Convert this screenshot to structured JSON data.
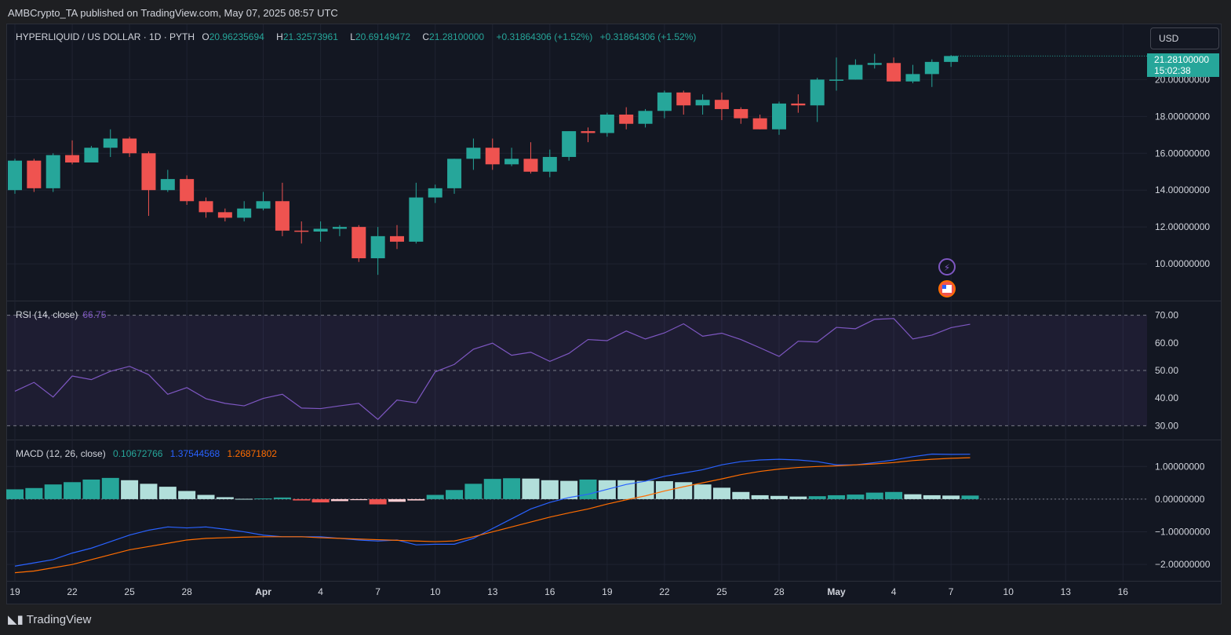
{
  "header": {
    "publisher_line": "AMBCrypto_TA published on TradingView.com, May 07, 2025 08:57 UTC"
  },
  "main_legend": {
    "symbol": "HYPERLIQUID / US DOLLAR · 1D · PYTH",
    "o_label": "O",
    "o_value": "20.96235694",
    "h_label": "H",
    "h_value": "21.32573961",
    "l_label": "L",
    "l_value": "20.69149472",
    "c_label": "C",
    "c_value": "21.28100000",
    "change": "+0.31864306 (+1.52%)",
    "change2": "+0.31864306 (+1.52%)"
  },
  "currency_button": "USD",
  "last_price_label": {
    "price": "21.28100000",
    "countdown": "15:02:38"
  },
  "rsi_legend": {
    "name": "RSI (14, close)",
    "value": "66.75"
  },
  "macd_legend": {
    "name": "MACD (12, 26, close)",
    "hist": "0.10672766",
    "macd": "1.37544568",
    "signal": "1.26871802"
  },
  "footer": {
    "brand": "TradingView"
  },
  "chart_data": [
    {
      "type": "candlestick",
      "ylim": [
        8.0,
        23.0
      ],
      "y_ticks": [
        "10.00000000",
        "12.00000000",
        "14.00000000",
        "16.00000000",
        "18.00000000",
        "20.00000000"
      ],
      "x_ticks": [
        "19",
        "22",
        "25",
        "28",
        "Apr",
        "4",
        "7",
        "10",
        "13",
        "16",
        "19",
        "22",
        "25",
        "28",
        "May",
        "4",
        "7",
        "10",
        "13",
        "16"
      ],
      "x_tick_day_index": [
        0,
        3,
        6,
        9,
        13,
        16,
        19,
        22,
        25,
        28,
        31,
        34,
        37,
        40,
        43,
        46,
        49,
        52,
        55,
        58
      ],
      "candles": [
        {
          "o": 14.0,
          "h": 15.7,
          "l": 13.8,
          "c": 15.6
        },
        {
          "o": 15.6,
          "h": 15.7,
          "l": 13.9,
          "c": 14.1
        },
        {
          "o": 14.1,
          "h": 16.0,
          "l": 13.9,
          "c": 15.9
        },
        {
          "o": 15.9,
          "h": 16.7,
          "l": 15.4,
          "c": 15.5
        },
        {
          "o": 15.5,
          "h": 16.4,
          "l": 15.5,
          "c": 16.3
        },
        {
          "o": 16.3,
          "h": 17.3,
          "l": 15.8,
          "c": 16.8
        },
        {
          "o": 16.8,
          "h": 16.9,
          "l": 15.8,
          "c": 16.0
        },
        {
          "o": 16.0,
          "h": 16.1,
          "l": 12.6,
          "c": 14.0
        },
        {
          "o": 14.0,
          "h": 15.1,
          "l": 13.9,
          "c": 14.6
        },
        {
          "o": 14.6,
          "h": 14.8,
          "l": 13.2,
          "c": 13.4
        },
        {
          "o": 13.4,
          "h": 13.6,
          "l": 12.5,
          "c": 12.8
        },
        {
          "o": 12.8,
          "h": 13.0,
          "l": 12.3,
          "c": 12.5
        },
        {
          "o": 12.5,
          "h": 13.4,
          "l": 12.3,
          "c": 13.0
        },
        {
          "o": 13.0,
          "h": 13.9,
          "l": 12.9,
          "c": 13.4
        },
        {
          "o": 13.4,
          "h": 14.4,
          "l": 11.5,
          "c": 11.8
        },
        {
          "o": 11.8,
          "h": 12.3,
          "l": 11.1,
          "c": 11.75
        },
        {
          "o": 11.75,
          "h": 12.3,
          "l": 11.2,
          "c": 11.9
        },
        {
          "o": 11.9,
          "h": 12.1,
          "l": 11.5,
          "c": 12.0
        },
        {
          "o": 12.0,
          "h": 12.1,
          "l": 10.1,
          "c": 10.3
        },
        {
          "o": 10.3,
          "h": 12.0,
          "l": 9.4,
          "c": 11.5
        },
        {
          "o": 11.5,
          "h": 12.1,
          "l": 10.8,
          "c": 11.2
        },
        {
          "o": 11.2,
          "h": 14.4,
          "l": 11.1,
          "c": 13.6
        },
        {
          "o": 13.6,
          "h": 14.3,
          "l": 13.3,
          "c": 14.1
        },
        {
          "o": 14.1,
          "h": 15.7,
          "l": 13.8,
          "c": 15.7
        },
        {
          "o": 15.7,
          "h": 16.8,
          "l": 15.1,
          "c": 16.3
        },
        {
          "o": 16.3,
          "h": 16.8,
          "l": 15.1,
          "c": 15.4
        },
        {
          "o": 15.4,
          "h": 16.3,
          "l": 15.3,
          "c": 15.7
        },
        {
          "o": 15.7,
          "h": 16.6,
          "l": 14.9,
          "c": 15.0
        },
        {
          "o": 15.0,
          "h": 16.2,
          "l": 14.7,
          "c": 15.8
        },
        {
          "o": 15.8,
          "h": 17.2,
          "l": 15.6,
          "c": 17.2
        },
        {
          "o": 17.2,
          "h": 17.4,
          "l": 16.6,
          "c": 17.1
        },
        {
          "o": 17.1,
          "h": 18.2,
          "l": 16.9,
          "c": 18.1
        },
        {
          "o": 18.1,
          "h": 18.5,
          "l": 17.3,
          "c": 17.6
        },
        {
          "o": 17.6,
          "h": 18.4,
          "l": 17.4,
          "c": 18.3
        },
        {
          "o": 18.3,
          "h": 19.4,
          "l": 17.9,
          "c": 19.3
        },
        {
          "o": 19.3,
          "h": 19.4,
          "l": 18.1,
          "c": 18.6
        },
        {
          "o": 18.6,
          "h": 19.2,
          "l": 18.1,
          "c": 18.9
        },
        {
          "o": 18.9,
          "h": 19.3,
          "l": 17.8,
          "c": 18.4
        },
        {
          "o": 18.4,
          "h": 18.5,
          "l": 17.6,
          "c": 17.9
        },
        {
          "o": 17.9,
          "h": 18.1,
          "l": 17.3,
          "c": 17.3
        },
        {
          "o": 17.3,
          "h": 18.8,
          "l": 17.0,
          "c": 18.7
        },
        {
          "o": 18.7,
          "h": 19.2,
          "l": 18.2,
          "c": 18.6
        },
        {
          "o": 18.6,
          "h": 20.1,
          "l": 17.7,
          "c": 20.0
        },
        {
          "o": 20.0,
          "h": 21.2,
          "l": 19.4,
          "c": 20.0
        },
        {
          "o": 20.0,
          "h": 21.1,
          "l": 20.0,
          "c": 20.8
        },
        {
          "o": 20.8,
          "h": 21.4,
          "l": 20.6,
          "c": 20.9
        },
        {
          "o": 20.9,
          "h": 21.2,
          "l": 19.9,
          "c": 19.9
        },
        {
          "o": 19.9,
          "h": 20.8,
          "l": 19.8,
          "c": 20.3
        },
        {
          "o": 20.3,
          "h": 21.1,
          "l": 19.6,
          "c": 20.96
        },
        {
          "o": 20.96,
          "h": 21.33,
          "l": 20.69,
          "c": 21.28
        }
      ]
    },
    {
      "type": "line",
      "name": "RSI (14, close)",
      "ylim": [
        25,
        75
      ],
      "y_ticks": [
        30,
        40,
        50,
        60,
        70
      ],
      "bands": {
        "upper": 70,
        "middle": 50,
        "lower": 30
      },
      "values": [
        42.5,
        45.7,
        40.4,
        48.0,
        46.7,
        49.7,
        51.5,
        48.5,
        41.4,
        43.8,
        39.8,
        38.1,
        37.2,
        39.9,
        41.4,
        36.4,
        36.2,
        37.2,
        38.1,
        32.3,
        39.3,
        38.3,
        49.5,
        52.2,
        57.7,
        59.9,
        55.5,
        56.6,
        53.3,
        56.2,
        61.2,
        60.8,
        64.3,
        61.4,
        63.6,
        66.9,
        62.4,
        63.5,
        61.2,
        58.2,
        55.1,
        60.6,
        60.3,
        65.6,
        65.1,
        68.5,
        68.8,
        61.4,
        62.8,
        65.5,
        66.75
      ]
    },
    {
      "type": "bar+line",
      "name": "MACD (12, 26, close)",
      "ylim": [
        -2.5,
        1.8
      ],
      "y_ticks": [
        "1.00000000",
        "0.00000000",
        "−1.00000000",
        "−2.00000000"
      ],
      "histogram": [
        0.3,
        0.34,
        0.45,
        0.52,
        0.6,
        0.65,
        0.58,
        0.47,
        0.38,
        0.25,
        0.13,
        0.06,
        0.01,
        0.02,
        0.05,
        -0.04,
        -0.1,
        -0.06,
        -0.03,
        -0.16,
        -0.08,
        -0.04,
        0.13,
        0.28,
        0.47,
        0.62,
        0.64,
        0.63,
        0.58,
        0.56,
        0.6,
        0.58,
        0.58,
        0.56,
        0.55,
        0.52,
        0.45,
        0.35,
        0.22,
        0.12,
        0.1,
        0.08,
        0.09,
        0.12,
        0.14,
        0.2,
        0.22,
        0.15,
        0.12,
        0.11,
        0.11
      ],
      "histogram_colors": [
        "#26a69a",
        "#26a69a",
        "#26a69a",
        "#26a69a",
        "#26a69a",
        "#26a69a",
        "#b2dfdb",
        "#b2dfdb",
        "#b2dfdb",
        "#b2dfdb",
        "#b2dfdb",
        "#b2dfdb",
        "#b2dfdb",
        "#26a69a",
        "#26a69a",
        "#ef5350",
        "#ef5350",
        "#ffcdd2",
        "#ffcdd2",
        "#ef5350",
        "#ffcdd2",
        "#ffcdd2",
        "#26a69a",
        "#26a69a",
        "#26a69a",
        "#26a69a",
        "#26a69a",
        "#b2dfdb",
        "#b2dfdb",
        "#b2dfdb",
        "#26a69a",
        "#b2dfdb",
        "#b2dfdb",
        "#b2dfdb",
        "#b2dfdb",
        "#b2dfdb",
        "#b2dfdb",
        "#b2dfdb",
        "#b2dfdb",
        "#b2dfdb",
        "#b2dfdb",
        "#b2dfdb",
        "#26a69a",
        "#26a69a",
        "#26a69a",
        "#26a69a",
        "#26a69a",
        "#b2dfdb",
        "#b2dfdb",
        "#b2dfdb",
        "#26a69a"
      ],
      "macd": [
        -2.05,
        -1.95,
        -1.85,
        -1.65,
        -1.5,
        -1.3,
        -1.1,
        -0.95,
        -0.85,
        -0.88,
        -0.85,
        -0.92,
        -1.0,
        -1.1,
        -1.15,
        -1.15,
        -1.15,
        -1.2,
        -1.25,
        -1.28,
        -1.25,
        -1.4,
        -1.38,
        -1.38,
        -1.2,
        -0.9,
        -0.6,
        -0.3,
        -0.1,
        0.05,
        0.15,
        0.3,
        0.45,
        0.55,
        0.7,
        0.8,
        0.9,
        1.05,
        1.15,
        1.2,
        1.22,
        1.2,
        1.15,
        1.05,
        1.05,
        1.12,
        1.2,
        1.3,
        1.38,
        1.37,
        1.375
      ],
      "signal": [
        -2.25,
        -2.2,
        -2.1,
        -2.0,
        -1.85,
        -1.7,
        -1.55,
        -1.45,
        -1.35,
        -1.25,
        -1.2,
        -1.18,
        -1.16,
        -1.15,
        -1.15,
        -1.15,
        -1.18,
        -1.2,
        -1.22,
        -1.24,
        -1.26,
        -1.28,
        -1.3,
        -1.28,
        -1.15,
        -1.0,
        -0.85,
        -0.7,
        -0.55,
        -0.42,
        -0.3,
        -0.15,
        -0.02,
        0.1,
        0.25,
        0.38,
        0.5,
        0.62,
        0.75,
        0.85,
        0.92,
        0.97,
        1.0,
        1.02,
        1.05,
        1.08,
        1.12,
        1.18,
        1.22,
        1.25,
        1.269
      ]
    }
  ],
  "colors": {
    "up": "#26a69a",
    "down": "#ef5350",
    "rsi_line": "#7e57c2",
    "macd_line": "#2962ff",
    "signal_line": "#ff6d00",
    "background": "#131722",
    "grid": "#1f2331"
  }
}
